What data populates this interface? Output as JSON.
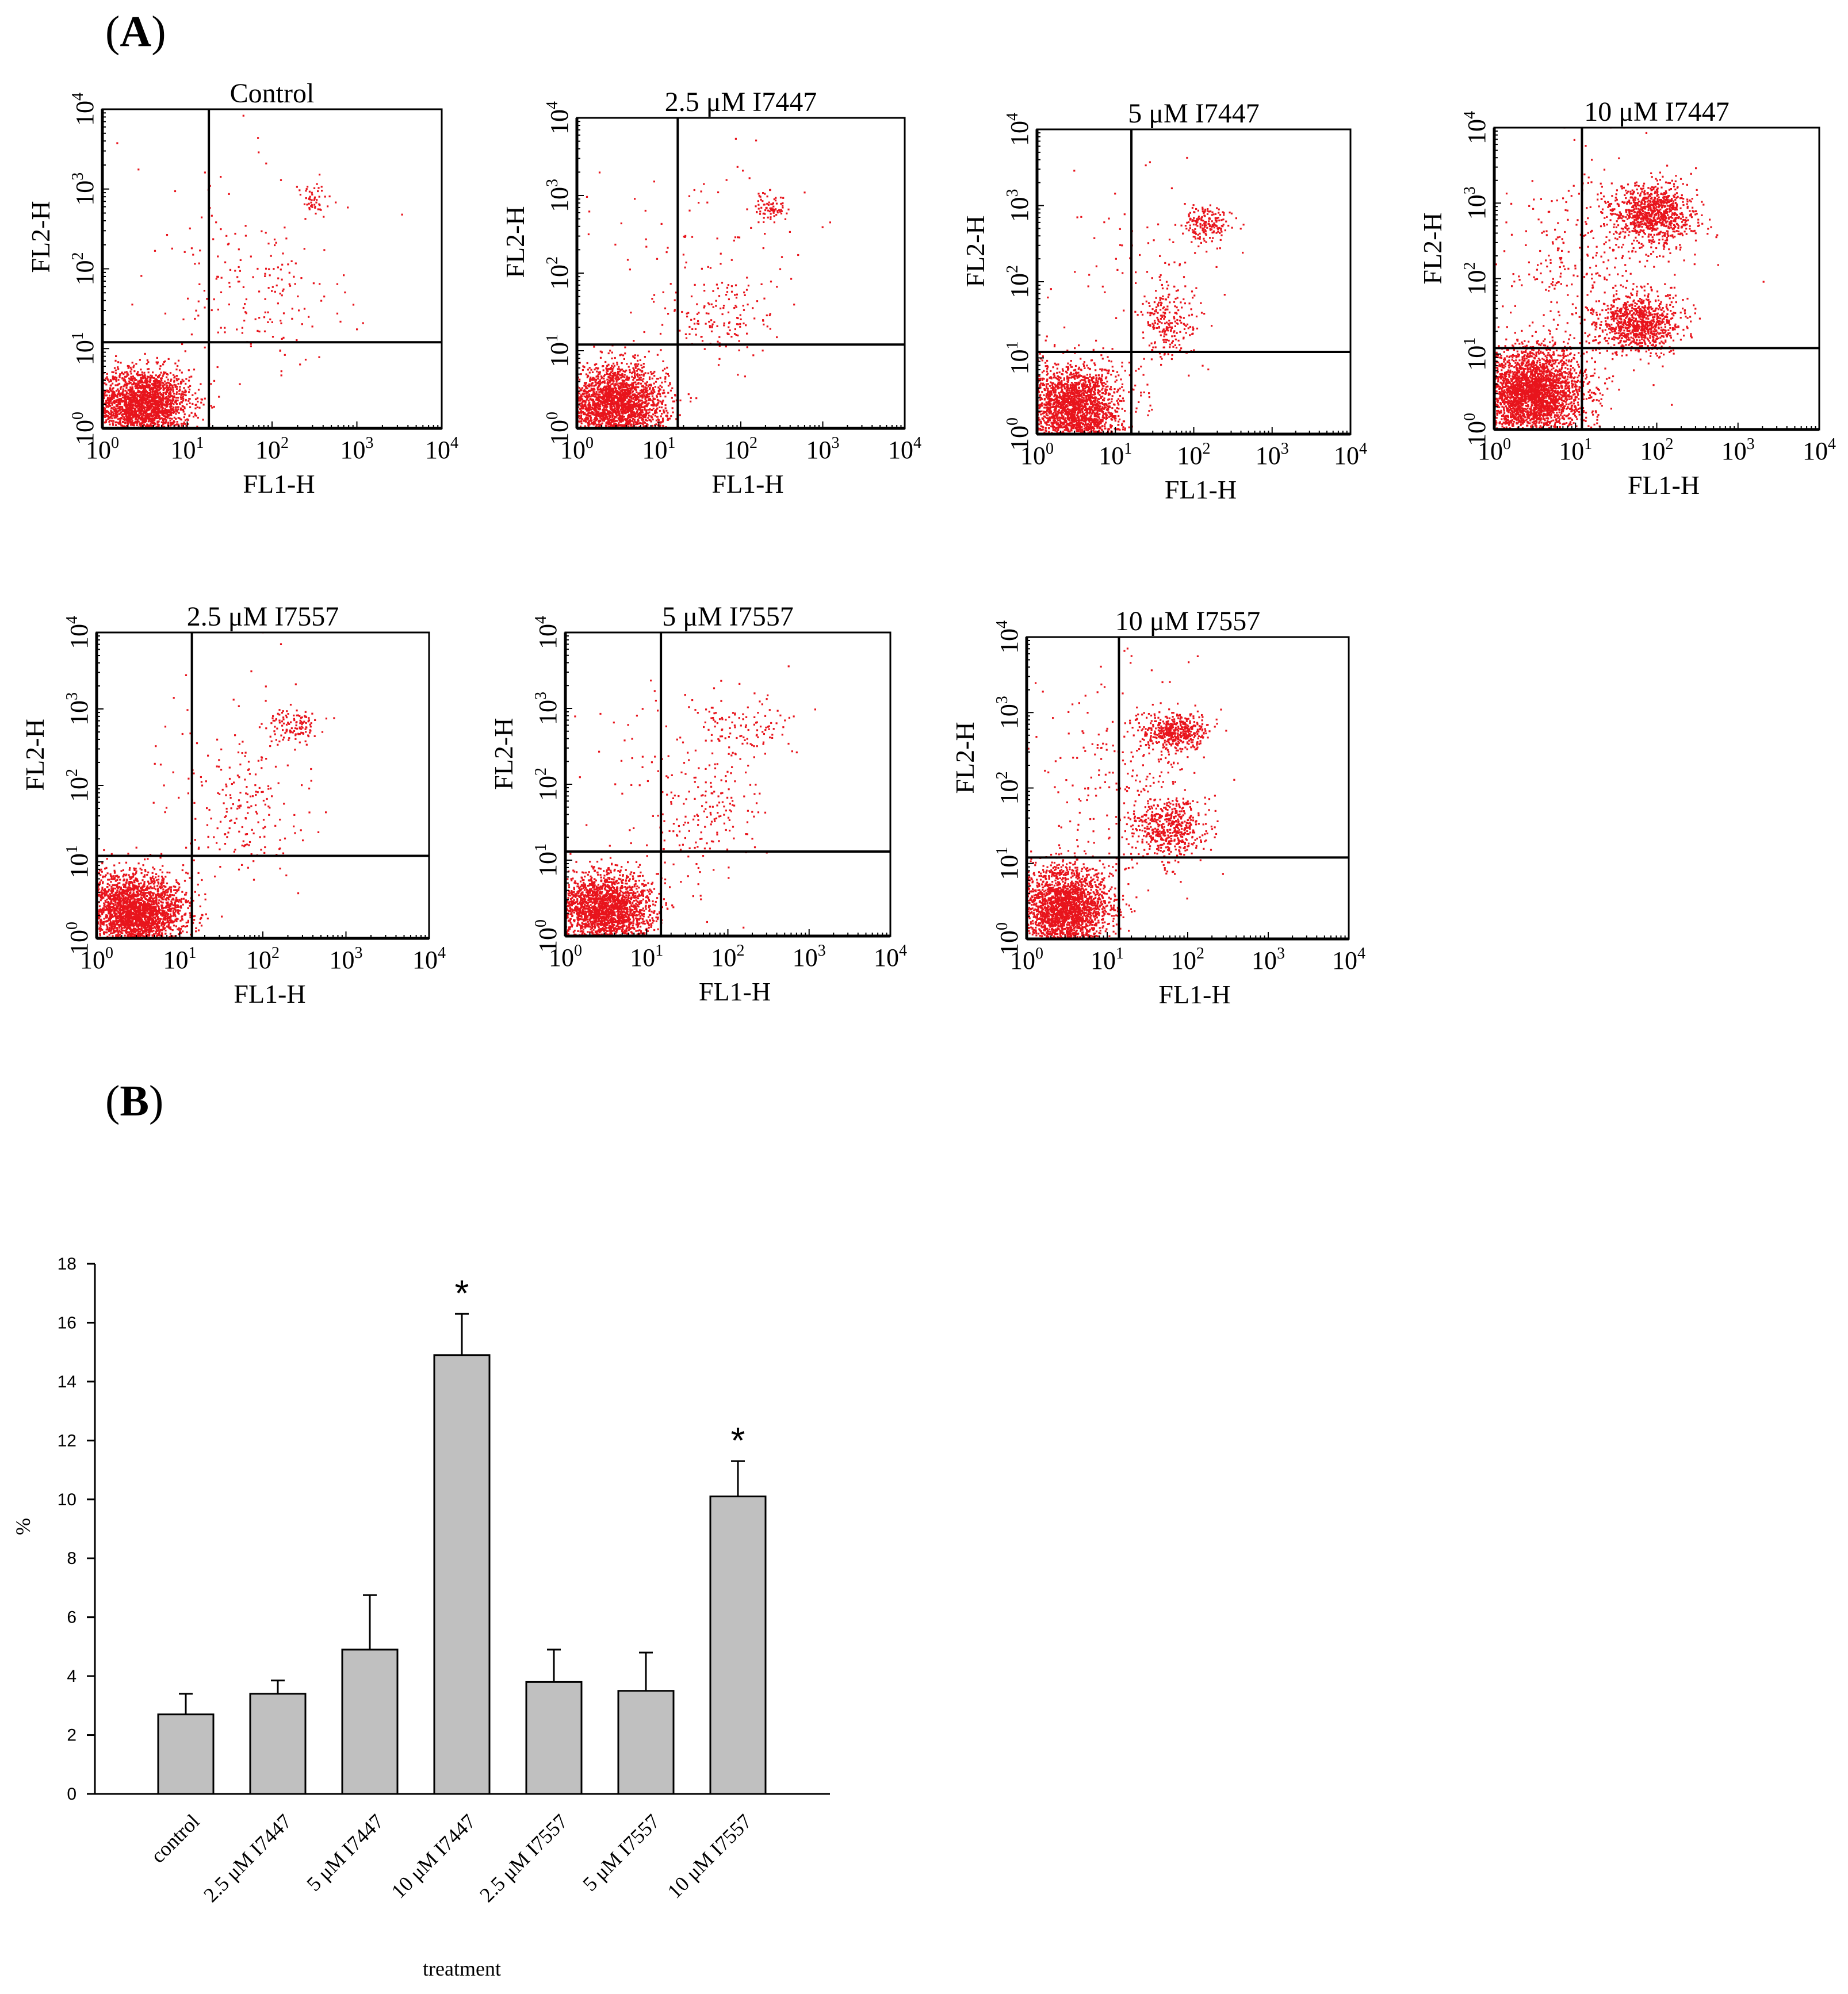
{
  "panel_a": {
    "label_open": "(",
    "label_letter": "A",
    "label_close": ")"
  },
  "panel_b": {
    "label_open": "(",
    "label_letter": "B",
    "label_close": ")"
  },
  "colors": {
    "dots": "#e8141c",
    "bars": "#c0c0c0",
    "axis": "#000000"
  },
  "chart_data": [
    {
      "type": "scatter",
      "title": "Control",
      "xlabel": "FL1-H",
      "ylabel": "FL2-H",
      "xscale": "log",
      "yscale": "log",
      "xlim": [
        1,
        10000
      ],
      "ylim": [
        1,
        10000
      ],
      "xticks": [
        "10^0",
        "10^1",
        "10^2",
        "10^3",
        "10^4"
      ],
      "yticks": [
        "10^0",
        "10^1",
        "10^2",
        "10^3",
        "10^4"
      ],
      "gate": {
        "x": 18,
        "y": 12
      },
      "clusters": [
        {
          "cx": 3,
          "cy": 2,
          "sx": 0.28,
          "sy": 0.22,
          "n": 2200
        },
        {
          "cx": 80,
          "cy": 50,
          "sx": 0.45,
          "sy": 0.45,
          "n": 140
        },
        {
          "cx": 300,
          "cy": 700,
          "sx": 0.12,
          "sy": 0.12,
          "n": 50
        },
        {
          "cx": 30,
          "cy": 200,
          "sx": 0.6,
          "sy": 0.8,
          "n": 50
        }
      ]
    },
    {
      "type": "scatter",
      "title": "2.5 μM I7447",
      "xlabel": "FL1-H",
      "ylabel": "FL2-H",
      "xscale": "log",
      "yscale": "log",
      "xlim": [
        1,
        10000
      ],
      "ylim": [
        1,
        10000
      ],
      "xticks": [
        "10^0",
        "10^1",
        "10^2",
        "10^3",
        "10^4"
      ],
      "yticks": [
        "10^0",
        "10^1",
        "10^2",
        "10^3",
        "10^4"
      ],
      "gate": {
        "x": 17,
        "y": 12
      },
      "clusters": [
        {
          "cx": 3,
          "cy": 2,
          "sx": 0.3,
          "sy": 0.25,
          "n": 2400
        },
        {
          "cx": 60,
          "cy": 25,
          "sx": 0.35,
          "sy": 0.3,
          "n": 150
        },
        {
          "cx": 230,
          "cy": 700,
          "sx": 0.1,
          "sy": 0.1,
          "n": 80
        },
        {
          "cx": 40,
          "cy": 300,
          "sx": 0.6,
          "sy": 0.6,
          "n": 70
        }
      ]
    },
    {
      "type": "scatter",
      "title": "5 μM I7447",
      "xlabel": "FL1-H",
      "ylabel": "FL2-H",
      "xscale": "log",
      "yscale": "log",
      "xlim": [
        1,
        10000
      ],
      "ylim": [
        1,
        10000
      ],
      "xticks": [
        "10^0",
        "10^1",
        "10^2",
        "10^3",
        "10^4"
      ],
      "yticks": [
        "10^0",
        "10^1",
        "10^2",
        "10^3",
        "10^4"
      ],
      "gate": {
        "x": 16,
        "y": 12
      },
      "clusters": [
        {
          "cx": 3,
          "cy": 2.2,
          "sx": 0.3,
          "sy": 0.28,
          "n": 2200
        },
        {
          "cx": 50,
          "cy": 30,
          "sx": 0.2,
          "sy": 0.25,
          "n": 220
        },
        {
          "cx": 150,
          "cy": 550,
          "sx": 0.15,
          "sy": 0.12,
          "n": 180
        },
        {
          "cx": 20,
          "cy": 200,
          "sx": 0.6,
          "sy": 0.7,
          "n": 80
        }
      ]
    },
    {
      "type": "scatter",
      "title": "10 μM I7447",
      "xlabel": "FL1-H",
      "ylabel": "FL2-H",
      "xscale": "log",
      "yscale": "log",
      "xlim": [
        1,
        10000
      ],
      "ylim": [
        1,
        10000
      ],
      "xticks": [
        "10^0",
        "10^1",
        "10^2",
        "10^3",
        "10^4"
      ],
      "yticks": [
        "10^0",
        "10^1",
        "10^2",
        "10^3",
        "10^4"
      ],
      "gate": {
        "x": 12,
        "y": 12
      },
      "clusters": [
        {
          "cx": 3,
          "cy": 3,
          "sx": 0.32,
          "sy": 0.3,
          "n": 3000
        },
        {
          "cx": 60,
          "cy": 25,
          "sx": 0.25,
          "sy": 0.18,
          "n": 900
        },
        {
          "cx": 90,
          "cy": 700,
          "sx": 0.25,
          "sy": 0.2,
          "n": 900
        },
        {
          "cx": 20,
          "cy": 150,
          "sx": 0.6,
          "sy": 0.7,
          "n": 400
        }
      ]
    },
    {
      "type": "scatter",
      "title": "2.5 μM I7557",
      "xlabel": "FL1-H",
      "ylabel": "FL2-H",
      "xscale": "log",
      "yscale": "log",
      "xlim": [
        1,
        10000
      ],
      "ylim": [
        1,
        10000
      ],
      "xticks": [
        "10^0",
        "10^1",
        "10^2",
        "10^3",
        "10^4"
      ],
      "yticks": [
        "10^0",
        "10^1",
        "10^2",
        "10^3",
        "10^4"
      ],
      "gate": {
        "x": 14,
        "y": 12
      },
      "clusters": [
        {
          "cx": 3,
          "cy": 2.2,
          "sx": 0.3,
          "sy": 0.25,
          "n": 2600
        },
        {
          "cx": 60,
          "cy": 40,
          "sx": 0.35,
          "sy": 0.4,
          "n": 160
        },
        {
          "cx": 220,
          "cy": 600,
          "sx": 0.15,
          "sy": 0.12,
          "n": 120
        },
        {
          "cx": 30,
          "cy": 200,
          "sx": 0.6,
          "sy": 0.7,
          "n": 60
        }
      ]
    },
    {
      "type": "scatter",
      "title": "5 μM I7557",
      "xlabel": "FL1-H",
      "ylabel": "FL2-H",
      "xscale": "log",
      "yscale": "log",
      "xlim": [
        1,
        10000
      ],
      "ylim": [
        1,
        10000
      ],
      "xticks": [
        "10^0",
        "10^1",
        "10^2",
        "10^3",
        "10^4"
      ],
      "yticks": [
        "10^0",
        "10^1",
        "10^2",
        "10^3",
        "10^4"
      ],
      "gate": {
        "x": 15,
        "y": 13
      },
      "clusters": [
        {
          "cx": 3,
          "cy": 2.2,
          "sx": 0.3,
          "sy": 0.25,
          "n": 2200
        },
        {
          "cx": 50,
          "cy": 40,
          "sx": 0.35,
          "sy": 0.45,
          "n": 170
        },
        {
          "cx": 150,
          "cy": 500,
          "sx": 0.3,
          "sy": 0.2,
          "n": 110
        },
        {
          "cx": 30,
          "cy": 200,
          "sx": 0.6,
          "sy": 0.7,
          "n": 60
        }
      ]
    },
    {
      "type": "scatter",
      "title": "10 μM I7557",
      "xlabel": "FL1-H",
      "ylabel": "FL2-H",
      "xscale": "log",
      "yscale": "log",
      "xlim": [
        1,
        10000
      ],
      "ylim": [
        1,
        10000
      ],
      "xticks": [
        "10^0",
        "10^1",
        "10^2",
        "10^3",
        "10^4"
      ],
      "yticks": [
        "10^0",
        "10^1",
        "10^2",
        "10^3",
        "10^4"
      ],
      "gate": {
        "x": 14,
        "y": 12
      },
      "clusters": [
        {
          "cx": 3,
          "cy": 2.5,
          "sx": 0.28,
          "sy": 0.28,
          "n": 2300
        },
        {
          "cx": 60,
          "cy": 30,
          "sx": 0.22,
          "sy": 0.2,
          "n": 500
        },
        {
          "cx": 70,
          "cy": 550,
          "sx": 0.2,
          "sy": 0.12,
          "n": 450
        },
        {
          "cx": 20,
          "cy": 150,
          "sx": 0.5,
          "sy": 0.7,
          "n": 250
        }
      ]
    },
    {
      "type": "bar",
      "categories": [
        "control",
        "2.5 μM I7447",
        "5 μM I7447",
        "10 μM I7447",
        "2.5 μM I7557",
        "5 μM I7557",
        "10 μM I7557"
      ],
      "values": [
        2.7,
        3.4,
        4.9,
        14.9,
        3.8,
        3.5,
        10.1
      ],
      "errors": [
        0.7,
        0.45,
        1.85,
        1.4,
        1.1,
        1.3,
        1.2
      ],
      "significance": [
        "",
        "",
        "",
        "*",
        "",
        "",
        "*"
      ],
      "title": "",
      "xlabel": "treatment",
      "ylabel": "%",
      "ylim": [
        0,
        18
      ],
      "yticks": [
        "0",
        "2",
        "4",
        "6",
        "8",
        "10",
        "12",
        "14",
        "16",
        "18"
      ]
    }
  ]
}
